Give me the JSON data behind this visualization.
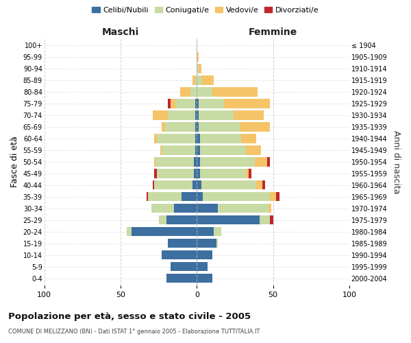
{
  "age_groups_display": [
    "100+",
    "95-99",
    "90-94",
    "85-89",
    "80-84",
    "75-79",
    "70-74",
    "65-69",
    "60-64",
    "55-59",
    "50-54",
    "45-49",
    "40-44",
    "35-39",
    "30-34",
    "25-29",
    "20-24",
    "15-19",
    "10-14",
    "5-9",
    "0-4"
  ],
  "birth_years_display": [
    "≤ 1904",
    "1905-1909",
    "1910-1914",
    "1915-1919",
    "1920-1924",
    "1925-1929",
    "1930-1934",
    "1935-1939",
    "1940-1944",
    "1945-1949",
    "1950-1954",
    "1955-1959",
    "1960-1964",
    "1965-1969",
    "1970-1974",
    "1975-1979",
    "1980-1984",
    "1985-1989",
    "1990-1994",
    "1995-1999",
    "2000-2004"
  ],
  "colors": {
    "celibi": "#3d6fa0",
    "coniugati": "#c8dba4",
    "vedovi": "#f5c469",
    "divorziati": "#c0272d"
  },
  "males": {
    "celibi": [
      0,
      0,
      0,
      0,
      0,
      1,
      1,
      1,
      1,
      1,
      2,
      2,
      3,
      10,
      15,
      20,
      43,
      19,
      23,
      17,
      20
    ],
    "coniugati": [
      0,
      0,
      0,
      1,
      4,
      13,
      18,
      20,
      25,
      22,
      25,
      24,
      25,
      22,
      15,
      5,
      3,
      0,
      0,
      0,
      0
    ],
    "vedovi": [
      0,
      0,
      0,
      2,
      7,
      3,
      10,
      2,
      2,
      1,
      1,
      0,
      0,
      0,
      0,
      0,
      0,
      0,
      0,
      0,
      0
    ],
    "divorziati": [
      0,
      0,
      0,
      0,
      0,
      2,
      0,
      0,
      0,
      0,
      0,
      2,
      1,
      1,
      0,
      0,
      0,
      0,
      0,
      0,
      0
    ]
  },
  "females": {
    "celibi": [
      0,
      0,
      0,
      0,
      0,
      1,
      1,
      1,
      2,
      2,
      2,
      2,
      3,
      4,
      14,
      41,
      11,
      13,
      10,
      7,
      10
    ],
    "coniugati": [
      0,
      0,
      1,
      3,
      10,
      17,
      23,
      27,
      27,
      30,
      36,
      30,
      36,
      44,
      33,
      7,
      5,
      1,
      0,
      0,
      0
    ],
    "vedovi": [
      0,
      1,
      2,
      8,
      30,
      30,
      20,
      20,
      10,
      10,
      8,
      2,
      4,
      4,
      2,
      0,
      0,
      0,
      0,
      0,
      0
    ],
    "divorziati": [
      0,
      0,
      0,
      0,
      0,
      0,
      0,
      0,
      0,
      0,
      2,
      2,
      2,
      2,
      0,
      2,
      0,
      0,
      0,
      0,
      0
    ]
  },
  "title": "Popolazione per età, sesso e stato civile - 2005",
  "subtitle": "COMUNE DI MELIZZANO (BN) - Dati ISTAT 1° gennaio 2005 - Elaborazione TUTTITALIA.IT",
  "xlabel_left": "Maschi",
  "xlabel_right": "Femmine",
  "ylabel_left": "Fasce di età",
  "ylabel_right": "Anni di nascita",
  "xlim": 100,
  "legend_labels": [
    "Celibi/Nubili",
    "Coniugati/e",
    "Vedovi/e",
    "Divorziati/e"
  ],
  "background_color": "#ffffff",
  "grid_color": "#cccccc"
}
